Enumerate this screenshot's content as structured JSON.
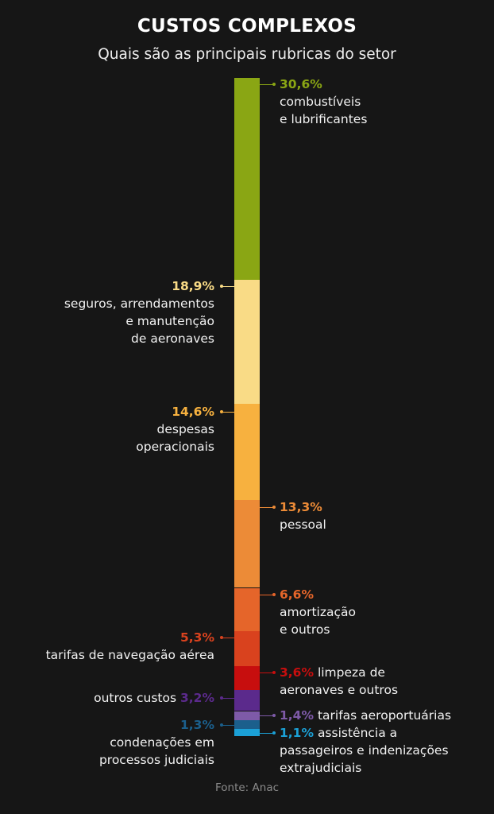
{
  "title": "CUSTOS COMPLEXOS",
  "subtitle": "Quais são as principais rubricas do setor",
  "source": "Fonte: Anac",
  "chart_data": {
    "type": "bar",
    "orientation": "vertical-stacked-100",
    "title": "CUSTOS COMPLEXOS",
    "subtitle": "Quais são as principais rubricas do setor",
    "unit": "%",
    "segments": [
      {
        "label": "combustíveis e lubrificantes",
        "value": 30.6,
        "value_label": "30,6%",
        "color": "#8aa614"
      },
      {
        "label": "seguros, arrendamentos e manutenção de aeronaves",
        "value": 18.9,
        "value_label": "18,9%",
        "color": "#f9db86"
      },
      {
        "label": "despesas operacionais",
        "value": 14.6,
        "value_label": "14,6%",
        "color": "#f7b13f"
      },
      {
        "label": "pessoal",
        "value": 13.3,
        "value_label": "13,3%",
        "color": "#ec8b37"
      },
      {
        "label": "amortização e outros",
        "value": 6.6,
        "value_label": "6,6%",
        "color": "#e5652a"
      },
      {
        "label": "tarifas de navegação aérea",
        "value": 5.3,
        "value_label": "5,3%",
        "color": "#d9421e"
      },
      {
        "label": "limpeza de aeronaves e outros",
        "value": 3.6,
        "value_label": "3,6%",
        "color": "#c70e0e"
      },
      {
        "label": "outros custos",
        "value": 3.2,
        "value_label": "3,2%",
        "color": "#5b2a8c"
      },
      {
        "label": "tarifas aeroportuárias",
        "value": 1.4,
        "value_label": "1,4%",
        "color": "#7e5aa8"
      },
      {
        "label": "condenações em processos judiciais",
        "value": 1.3,
        "value_label": "1,3%",
        "color": "#1b5f8c"
      },
      {
        "label": "assistência a passageiros e indenizações extrajudiciais",
        "value": 1.1,
        "value_label": "1,1%",
        "color": "#1ba0d6"
      }
    ],
    "label_lines": [
      [
        "combustíveis",
        "e lubrificantes"
      ],
      [
        "seguros, arrendamentos",
        "e manutenção",
        "de aeronaves"
      ],
      [
        "despesas",
        "operacionais"
      ],
      [
        "pessoal"
      ],
      [
        "amortização",
        "e outros"
      ],
      [
        "tarifas de navegação aérea"
      ],
      [
        "limpeza de",
        "aeronaves e outros"
      ],
      [
        "outros custos"
      ],
      [
        "tarifas aeroportuárias"
      ],
      [
        "condenações em",
        "processos judiciais"
      ],
      [
        "assistência a",
        "passageiros e indenizações",
        "extrajudiciais"
      ]
    ]
  }
}
